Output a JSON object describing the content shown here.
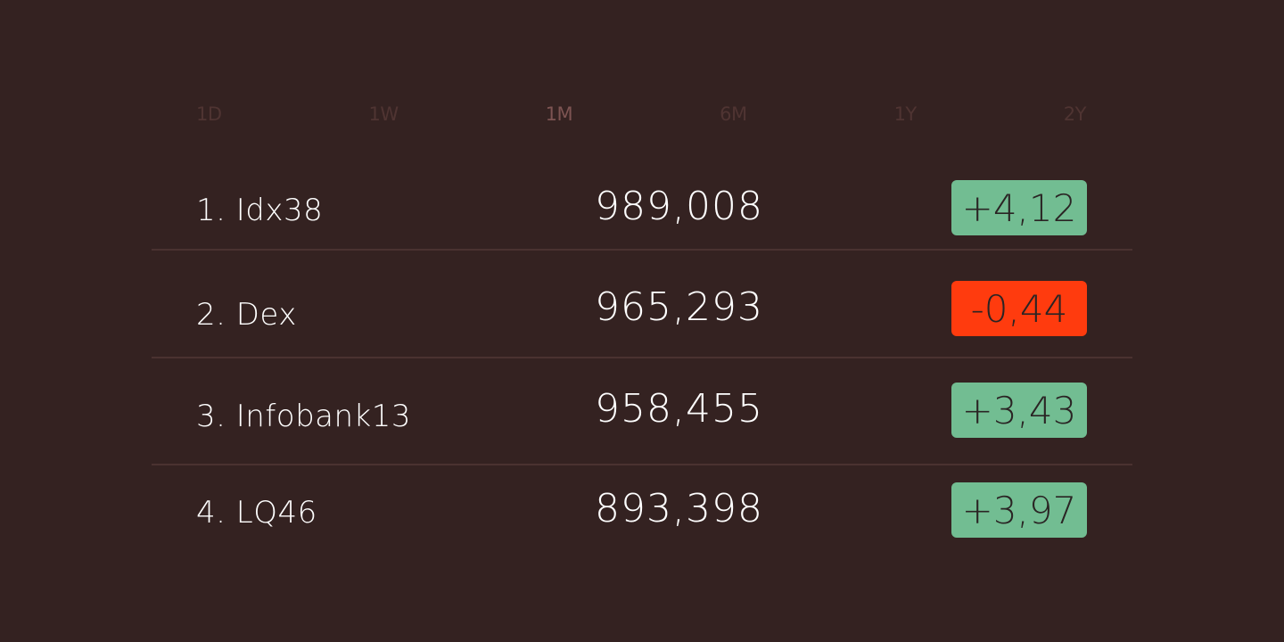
{
  "tabs": [
    {
      "label": "1D"
    },
    {
      "label": "1W"
    },
    {
      "label": "1M",
      "active": true
    },
    {
      "label": "6M"
    },
    {
      "label": "1Y"
    },
    {
      "label": "2Y"
    }
  ],
  "colors": {
    "background": "#342221",
    "positive": "#72bd92",
    "negative": "#ff3b0e"
  },
  "rows": [
    {
      "name": "1. Idx38",
      "value": "989,008",
      "change": "+4,12",
      "trend": "positive"
    },
    {
      "name": "2. Dex",
      "value": "965,293",
      "change": "-0,44",
      "trend": "negative"
    },
    {
      "name": "3. Infobank13",
      "value": "958,455",
      "change": "+3,43",
      "trend": "positive"
    },
    {
      "name": "4. LQ46",
      "value": "893,398",
      "change": "+3,97",
      "trend": "positive"
    }
  ]
}
